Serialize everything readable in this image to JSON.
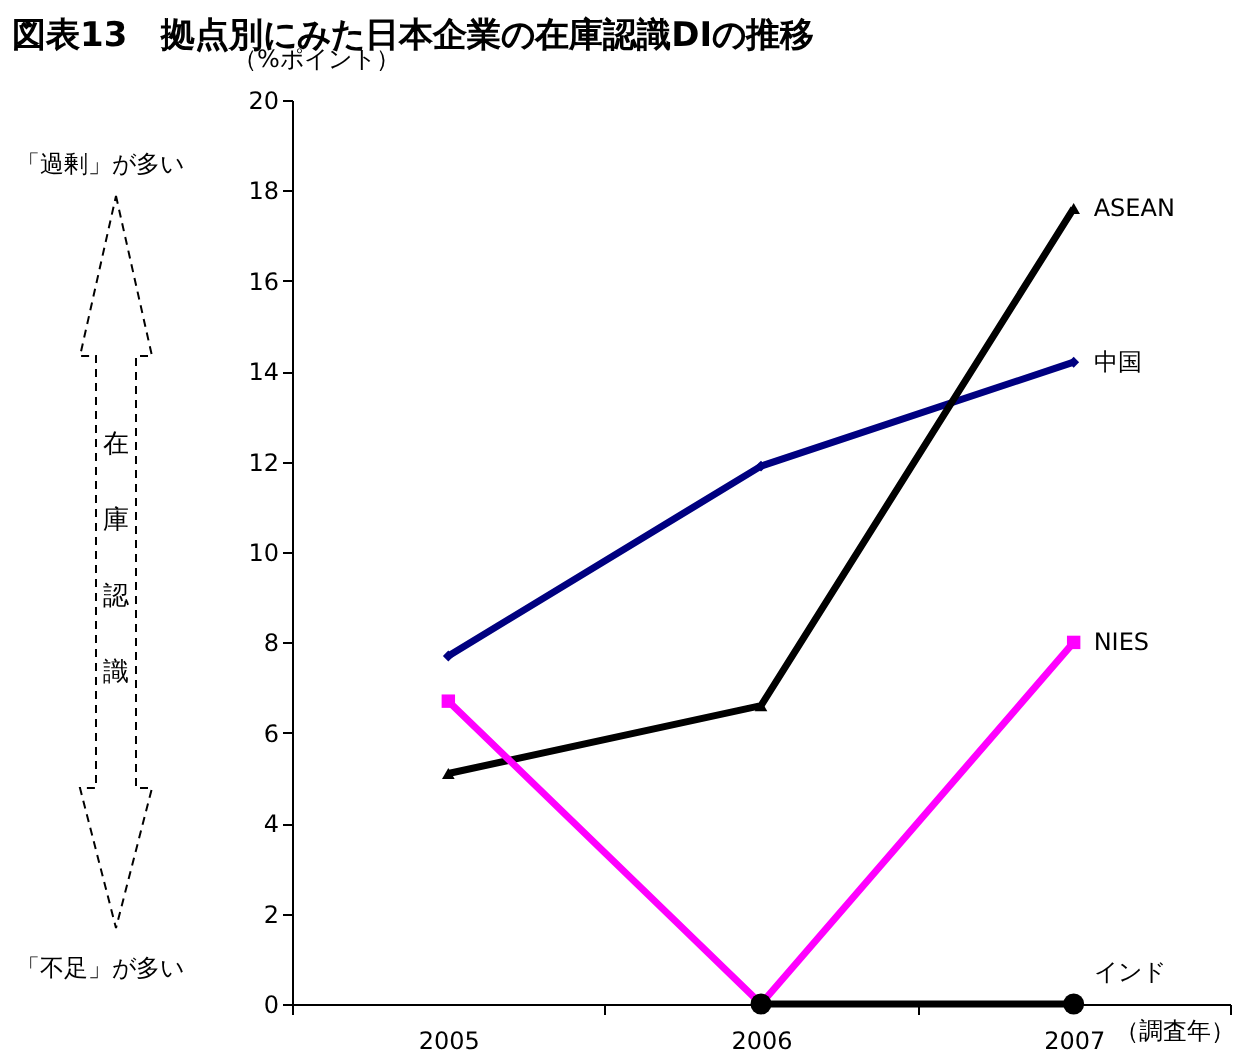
{
  "chart_data": {
    "type": "line",
    "title": "図表13　拠点別にみた日本企業の在庫認識DIの推移",
    "ylabel": "（%ポイント）",
    "xlabel": "（調査年）",
    "categories": [
      "2005",
      "2006",
      "2007"
    ],
    "series": [
      {
        "name": "中国",
        "color": "#000080",
        "marker": "diamond",
        "values": [
          7.7,
          11.9,
          14.2
        ]
      },
      {
        "name": "ASEAN",
        "color": "#000000",
        "marker": "triangle",
        "values": [
          5.1,
          6.6,
          17.6
        ]
      },
      {
        "name": "NIES",
        "color": "#ff00ff",
        "marker": "square",
        "values": [
          6.7,
          0,
          8.0
        ]
      },
      {
        "name": "インド",
        "color": "#000000",
        "marker": "circle",
        "values": [
          null,
          0,
          0
        ]
      }
    ],
    "ylim": [
      0,
      20
    ],
    "yticks": [
      0,
      2,
      4,
      6,
      8,
      10,
      12,
      14,
      16,
      18,
      20
    ],
    "grid": false,
    "annotations": [
      "「過剰」が多い",
      "在庫認識",
      "「不足」が多い"
    ]
  }
}
